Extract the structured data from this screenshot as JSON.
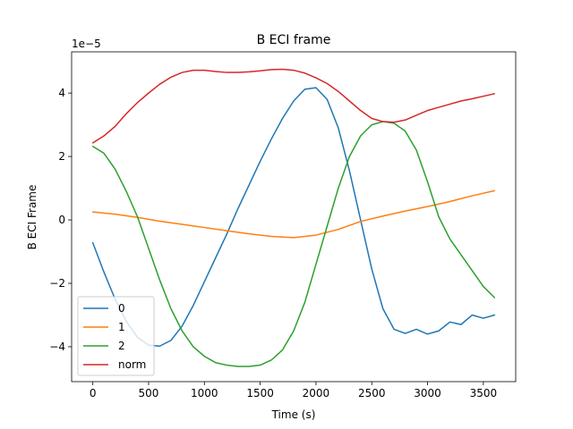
{
  "chart_data": {
    "type": "line",
    "title": "B ECI frame",
    "xlabel": "Time (s)",
    "ylabel": "B ECI Frame",
    "y_offset_text": "1e−5",
    "xlim": [
      -190,
      3790
    ],
    "ylim": [
      -5.1,
      5.3
    ],
    "x_ticks": [
      0,
      500,
      1000,
      1500,
      2000,
      2500,
      3000,
      3500
    ],
    "x_tick_labels": [
      "0",
      "500",
      "1000",
      "1500",
      "2000",
      "2500",
      "3000",
      "3500"
    ],
    "y_ticks": [
      -4,
      -2,
      0,
      2,
      4
    ],
    "y_tick_labels": [
      "−4",
      "−2",
      "0",
      "2",
      "4"
    ],
    "grid": false,
    "legend_position": "lower-left",
    "series": [
      {
        "name": "0",
        "color": "#1f77b4",
        "x": [
          0,
          100,
          200,
          300,
          400,
          500,
          600,
          700,
          800,
          900,
          1000,
          1100,
          1200,
          1300,
          1400,
          1500,
          1600,
          1700,
          1800,
          1900,
          2000,
          2100,
          2200,
          2300,
          2400,
          2500,
          2600,
          2700,
          2800,
          2900,
          3000,
          3100,
          3200,
          3300,
          3400,
          3500,
          3600
        ],
        "values": [
          -0.72,
          -1.65,
          -2.5,
          -3.2,
          -3.7,
          -3.95,
          -3.98,
          -3.8,
          -3.35,
          -2.7,
          -1.95,
          -1.2,
          -0.45,
          0.35,
          1.1,
          1.85,
          2.55,
          3.2,
          3.75,
          4.12,
          4.17,
          3.8,
          2.9,
          1.55,
          0.0,
          -1.55,
          -2.8,
          -3.45,
          -3.58,
          -3.45,
          -3.6,
          -3.5,
          -3.22,
          -3.3,
          -3.0,
          -3.1,
          -3.0
        ]
      },
      {
        "name": "1",
        "color": "#ff7f0e",
        "x": [
          0,
          200,
          400,
          600,
          800,
          1000,
          1200,
          1400,
          1600,
          1800,
          2000,
          2200,
          2400,
          2600,
          2800,
          3000,
          3200,
          3400,
          3600
        ],
        "values": [
          0.25,
          0.18,
          0.08,
          -0.04,
          -0.14,
          -0.24,
          -0.34,
          -0.44,
          -0.52,
          -0.56,
          -0.48,
          -0.3,
          -0.05,
          0.12,
          0.28,
          0.42,
          0.58,
          0.76,
          0.92
        ]
      },
      {
        "name": "2",
        "color": "#2ca02c",
        "x": [
          0,
          100,
          200,
          300,
          400,
          500,
          600,
          700,
          800,
          900,
          1000,
          1100,
          1200,
          1300,
          1400,
          1500,
          1600,
          1700,
          1800,
          1900,
          2000,
          2100,
          2200,
          2300,
          2400,
          2500,
          2600,
          2700,
          2800,
          2900,
          3000,
          3100,
          3200,
          3300,
          3400,
          3500,
          3600
        ],
        "values": [
          2.32,
          2.1,
          1.6,
          0.9,
          0.1,
          -0.9,
          -1.9,
          -2.8,
          -3.5,
          -4.0,
          -4.3,
          -4.5,
          -4.58,
          -4.62,
          -4.62,
          -4.58,
          -4.42,
          -4.1,
          -3.5,
          -2.6,
          -1.4,
          -0.2,
          1.0,
          2.0,
          2.65,
          3.0,
          3.1,
          3.05,
          2.8,
          2.2,
          1.2,
          0.1,
          -0.6,
          -1.1,
          -1.6,
          -2.1,
          -2.45
        ]
      },
      {
        "name": "norm",
        "color": "#d62728",
        "x": [
          0,
          100,
          200,
          300,
          400,
          500,
          600,
          700,
          800,
          900,
          1000,
          1100,
          1200,
          1300,
          1400,
          1500,
          1600,
          1700,
          1800,
          1900,
          2000,
          2100,
          2200,
          2300,
          2400,
          2500,
          2600,
          2700,
          2800,
          2900,
          3000,
          3100,
          3200,
          3300,
          3400,
          3500,
          3600
        ],
        "values": [
          2.43,
          2.65,
          2.95,
          3.35,
          3.7,
          4.0,
          4.28,
          4.5,
          4.65,
          4.72,
          4.72,
          4.68,
          4.65,
          4.65,
          4.67,
          4.7,
          4.74,
          4.75,
          4.72,
          4.63,
          4.48,
          4.3,
          4.05,
          3.75,
          3.45,
          3.2,
          3.1,
          3.08,
          3.15,
          3.3,
          3.45,
          3.55,
          3.65,
          3.75,
          3.82,
          3.9,
          3.98
        ]
      }
    ]
  }
}
